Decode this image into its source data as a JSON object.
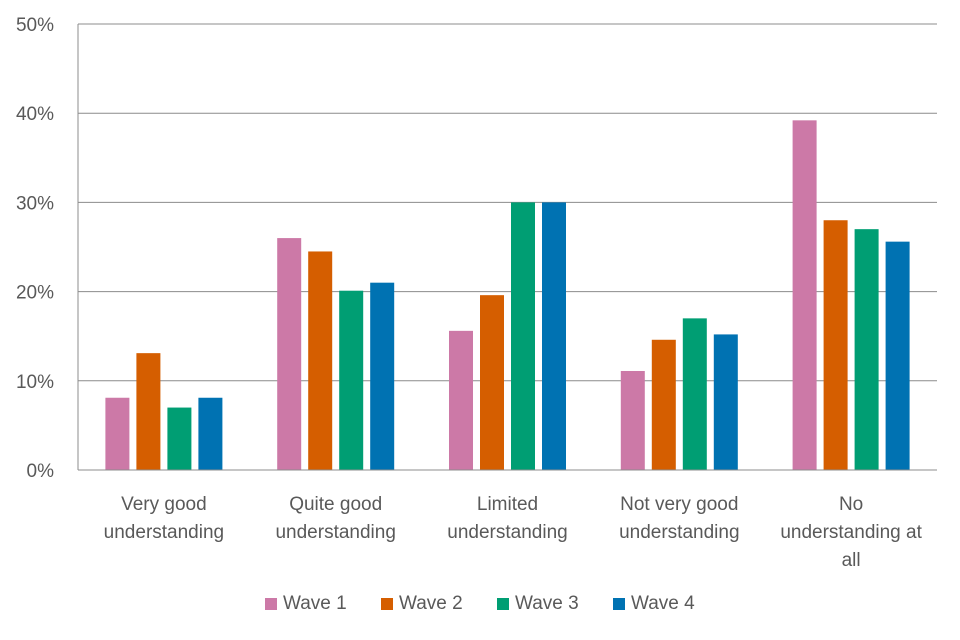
{
  "chart_data": {
    "type": "bar",
    "title": "",
    "xlabel": "",
    "ylabel": "",
    "ylim": [
      0,
      50
    ],
    "yticks": [
      0,
      10,
      20,
      30,
      40,
      50
    ],
    "ytick_labels": [
      "0%",
      "10%",
      "20%",
      "30%",
      "40%",
      "50%"
    ],
    "grid": true,
    "legend_position": "bottom",
    "categories": [
      [
        "Very good",
        "understanding"
      ],
      [
        "Quite good",
        "understanding"
      ],
      [
        "Limited",
        "understanding"
      ],
      [
        "Not very good",
        "understanding"
      ],
      [
        "No",
        "understanding at",
        "all"
      ]
    ],
    "series": [
      {
        "name": "Wave 1",
        "color": "#CC79A7",
        "values": [
          8.1,
          26.0,
          15.6,
          11.1,
          39.2
        ]
      },
      {
        "name": "Wave 2",
        "color": "#D55E00",
        "values": [
          13.1,
          24.5,
          19.6,
          14.6,
          28.0
        ]
      },
      {
        "name": "Wave 3",
        "color": "#009E73",
        "values": [
          7.0,
          20.1,
          30.0,
          17.0,
          27.0
        ]
      },
      {
        "name": "Wave 4",
        "color": "#0072B2",
        "values": [
          8.1,
          21.0,
          30.0,
          15.2,
          25.6
        ]
      }
    ]
  }
}
